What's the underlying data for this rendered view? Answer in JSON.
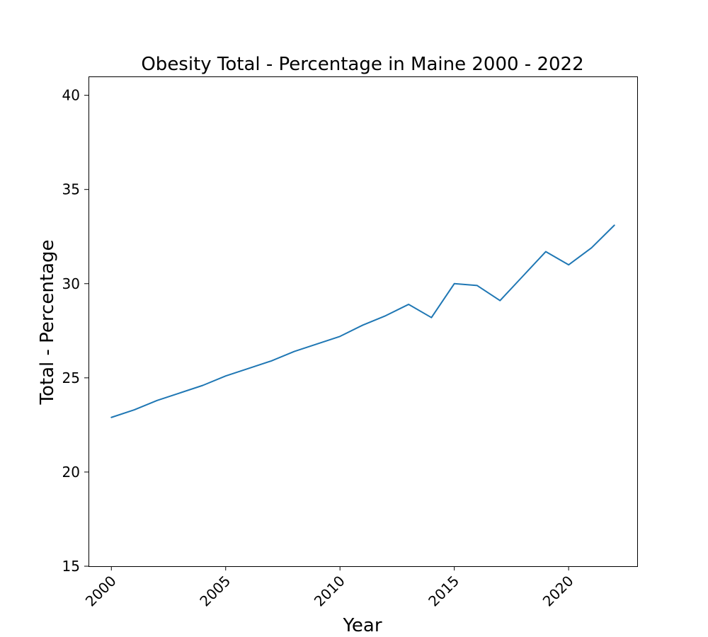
{
  "chart_data": {
    "type": "line",
    "title": "Obesity Total - Percentage in Maine 2000 - 2022",
    "xlabel": "Year",
    "ylabel": "Total - Percentage",
    "x": [
      2000,
      2001,
      2002,
      2003,
      2004,
      2005,
      2006,
      2007,
      2008,
      2009,
      2010,
      2011,
      2012,
      2013,
      2014,
      2015,
      2016,
      2017,
      2018,
      2019,
      2020,
      2021,
      2022
    ],
    "series": [
      {
        "values": [
          22.9,
          23.3,
          23.8,
          24.2,
          24.6,
          25.1,
          25.5,
          25.9,
          26.4,
          26.8,
          27.2,
          27.8,
          28.3,
          28.9,
          28.2,
          30.0,
          29.9,
          29.1,
          30.4,
          31.7,
          31.0,
          31.9,
          33.1
        ],
        "color": "#1f77b4"
      }
    ],
    "xlim": [
      1999,
      2023
    ],
    "ylim": [
      15,
      41
    ],
    "xticks": [
      2000,
      2005,
      2010,
      2015,
      2020
    ],
    "yticks": [
      15,
      20,
      25,
      30,
      35,
      40
    ],
    "x_tick_rotation": 45,
    "grid": false,
    "legend": "none"
  }
}
